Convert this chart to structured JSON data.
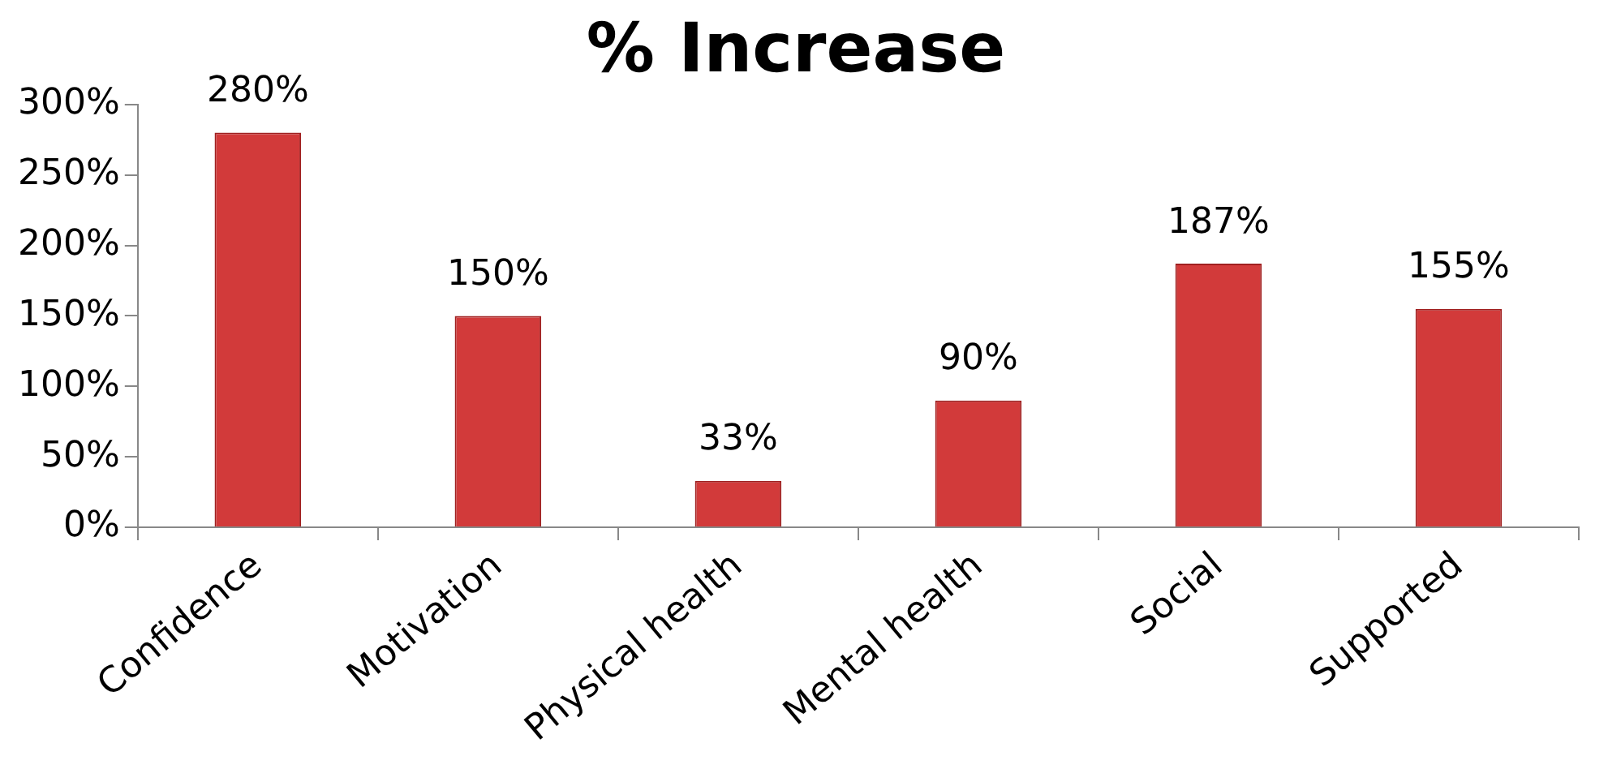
{
  "chart_data": {
    "type": "bar",
    "title": "% Increase",
    "categories": [
      "Confidence",
      "Motivation",
      "Physical health",
      "Mental health",
      "Social",
      "Supported"
    ],
    "values": [
      280,
      150,
      33,
      90,
      187,
      155
    ],
    "value_labels": [
      "280%",
      "150%",
      "33%",
      "90%",
      "187%",
      "155%"
    ],
    "color": "#d23a3a",
    "ylim": [
      0,
      300
    ],
    "yticks": [
      {
        "value": 0,
        "label": "0%"
      },
      {
        "value": 50,
        "label": "50%"
      },
      {
        "value": 100,
        "label": "100%"
      },
      {
        "value": 150,
        "label": "150%"
      },
      {
        "value": 200,
        "label": "200%"
      },
      {
        "value": 250,
        "label": "250%"
      },
      {
        "value": 300,
        "label": "300%"
      }
    ],
    "grid": false,
    "legend": false
  }
}
